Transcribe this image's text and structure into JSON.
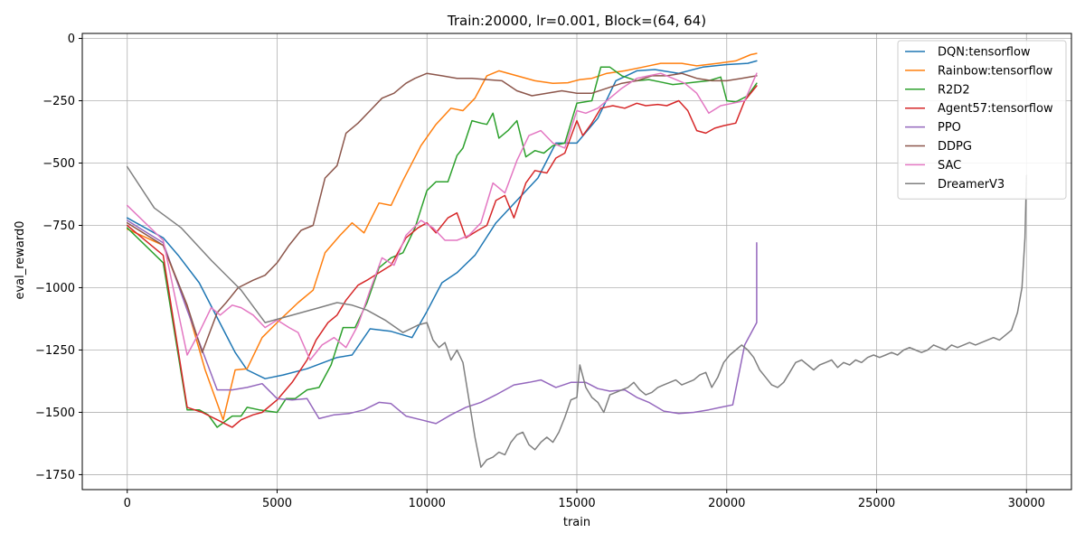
{
  "chart_data": {
    "type": "line",
    "title": "Train:20000, lr=0.001, Block=(64, 64)",
    "xlabel": "train",
    "ylabel": "eval_reward0",
    "xlim": [
      -1500,
      31500
    ],
    "ylim": [
      -1810,
      20
    ],
    "xticks": [
      0,
      5000,
      10000,
      15000,
      20000,
      25000,
      30000
    ],
    "yticks": [
      -1750,
      -1500,
      -1250,
      -1000,
      -750,
      -500,
      -250,
      0
    ],
    "grid": true,
    "legend_position": "top-right",
    "series": [
      {
        "name": "DQN:tensorflow",
        "color": "#1f77b4",
        "x": [
          0,
          1200,
          1700,
          2400,
          3000,
          3600,
          4000,
          4600,
          5200,
          6000,
          7000,
          7500,
          8100,
          8800,
          9500,
          10000,
          10500,
          11000,
          11600,
          12300,
          13000,
          13700,
          14300,
          15000,
          15700,
          16300,
          17000,
          17600,
          18400,
          19200,
          20000,
          20700,
          21000
        ],
        "y": [
          -720,
          -800,
          -870,
          -980,
          -1120,
          -1260,
          -1330,
          -1365,
          -1350,
          -1325,
          -1280,
          -1270,
          -1165,
          -1175,
          -1200,
          -1095,
          -980,
          -940,
          -870,
          -740,
          -650,
          -560,
          -420,
          -420,
          -320,
          -170,
          -130,
          -125,
          -140,
          -115,
          -105,
          -100,
          -90
        ]
      },
      {
        "name": "Rainbow:tensorflow",
        "color": "#ff7f0e",
        "x": [
          0,
          1200,
          2000,
          2600,
          3200,
          3600,
          4000,
          4500,
          5000,
          5700,
          6200,
          6600,
          7100,
          7500,
          7900,
          8400,
          8800,
          9200,
          9800,
          10300,
          10800,
          11200,
          11600,
          12000,
          12400,
          13000,
          13600,
          14200,
          14700,
          15100,
          15500,
          16000,
          16600,
          17200,
          17800,
          18500,
          19000,
          19700,
          20300,
          20800,
          21000
        ],
        "y": [
          -765,
          -830,
          -1080,
          -1330,
          -1530,
          -1330,
          -1325,
          -1200,
          -1140,
          -1060,
          -1010,
          -860,
          -790,
          -740,
          -780,
          -660,
          -670,
          -570,
          -430,
          -345,
          -280,
          -290,
          -240,
          -150,
          -130,
          -150,
          -170,
          -180,
          -178,
          -165,
          -160,
          -140,
          -130,
          -115,
          -100,
          -100,
          -110,
          -100,
          -90,
          -65,
          -60
        ]
      },
      {
        "name": "R2D2",
        "color": "#2ca02c",
        "x": [
          0,
          1200,
          2000,
          2400,
          2700,
          3000,
          3500,
          3800,
          4000,
          4400,
          5000,
          5300,
          5600,
          6000,
          6400,
          6800,
          7200,
          7600,
          8000,
          8400,
          8800,
          9200,
          9600,
          10000,
          10300,
          10700,
          11000,
          11200,
          11500,
          11800,
          12000,
          12200,
          12400,
          12700,
          13000,
          13300,
          13600,
          13900,
          14200,
          14600,
          15000,
          15500,
          15800,
          16100,
          16500,
          17000,
          17400,
          17800,
          18200,
          18600,
          19000,
          19400,
          19800,
          20000,
          20300,
          20700,
          21000
        ],
        "y": [
          -760,
          -900,
          -1490,
          -1490,
          -1510,
          -1560,
          -1515,
          -1515,
          -1480,
          -1490,
          -1500,
          -1445,
          -1445,
          -1410,
          -1400,
          -1310,
          -1160,
          -1160,
          -1060,
          -920,
          -880,
          -860,
          -760,
          -610,
          -575,
          -575,
          -470,
          -440,
          -330,
          -340,
          -345,
          -300,
          -400,
          -370,
          -330,
          -475,
          -450,
          -460,
          -430,
          -420,
          -260,
          -250,
          -115,
          -115,
          -150,
          -170,
          -165,
          -175,
          -185,
          -180,
          -175,
          -170,
          -155,
          -250,
          -255,
          -230,
          -180
        ]
      },
      {
        "name": "Agent57:tensorflow",
        "color": "#d62728",
        "x": [
          0,
          1200,
          2000,
          2500,
          3000,
          3500,
          3800,
          4200,
          4500,
          5000,
          5500,
          6000,
          6300,
          6700,
          7000,
          7300,
          7700,
          8000,
          8400,
          8800,
          9300,
          9700,
          10000,
          10300,
          10700,
          11000,
          11300,
          11700,
          12000,
          12300,
          12600,
          12900,
          13300,
          13600,
          14000,
          14300,
          14600,
          15000,
          15200,
          15500,
          15800,
          16200,
          16600,
          17000,
          17300,
          17700,
          18000,
          18400,
          18700,
          19000,
          19300,
          19600,
          19900,
          20300,
          20600,
          21000
        ],
        "y": [
          -750,
          -870,
          -1480,
          -1500,
          -1530,
          -1560,
          -1530,
          -1510,
          -1500,
          -1450,
          -1380,
          -1290,
          -1210,
          -1140,
          -1110,
          -1050,
          -990,
          -970,
          -940,
          -910,
          -800,
          -760,
          -740,
          -780,
          -720,
          -700,
          -800,
          -770,
          -750,
          -650,
          -630,
          -720,
          -580,
          -530,
          -540,
          -480,
          -460,
          -330,
          -390,
          -340,
          -280,
          -270,
          -280,
          -260,
          -270,
          -265,
          -270,
          -250,
          -290,
          -370,
          -380,
          -360,
          -350,
          -340,
          -250,
          -190
        ]
      },
      {
        "name": "PPO",
        "color": "#9467bd",
        "x": [
          0,
          1200,
          2000,
          2500,
          3000,
          3500,
          4000,
          4500,
          5000,
          5500,
          6000,
          6400,
          6900,
          7400,
          7900,
          8400,
          8800,
          9300,
          9800,
          10300,
          10800,
          11300,
          11800,
          12300,
          12900,
          13400,
          13800,
          14300,
          14800,
          15300,
          15700,
          16100,
          16600,
          17000,
          17400,
          17900,
          18400,
          18900,
          19400,
          19800,
          20200,
          20600,
          21000,
          21000,
          21000
        ],
        "y": [
          -730,
          -820,
          -1090,
          -1250,
          -1410,
          -1410,
          -1400,
          -1385,
          -1445,
          -1450,
          -1445,
          -1525,
          -1510,
          -1505,
          -1490,
          -1460,
          -1465,
          -1515,
          -1530,
          -1545,
          -1510,
          -1480,
          -1460,
          -1430,
          -1390,
          -1380,
          -1370,
          -1400,
          -1380,
          -1380,
          -1405,
          -1415,
          -1410,
          -1440,
          -1460,
          -1495,
          -1505,
          -1500,
          -1490,
          -1480,
          -1470,
          -1230,
          -1140,
          -1000,
          -820
        ]
      },
      {
        "name": "DDPG",
        "color": "#8c564b",
        "x": [
          0,
          1200,
          2000,
          2500,
          3000,
          3300,
          3700,
          4200,
          4600,
          5000,
          5400,
          5800,
          6200,
          6600,
          7000,
          7300,
          7700,
          8100,
          8500,
          8900,
          9300,
          9600,
          10000,
          10500,
          11000,
          11500,
          12000,
          12500,
          13000,
          13500,
          14000,
          14500,
          15000,
          15500,
          16000,
          16500,
          17000,
          17500,
          18000,
          18500,
          19000,
          19500,
          20000,
          20500,
          21000
        ],
        "y": [
          -740,
          -830,
          -1070,
          -1260,
          -1100,
          -1060,
          -1000,
          -970,
          -950,
          -900,
          -830,
          -770,
          -750,
          -560,
          -510,
          -380,
          -340,
          -290,
          -240,
          -220,
          -180,
          -160,
          -140,
          -150,
          -160,
          -160,
          -165,
          -170,
          -210,
          -230,
          -220,
          -210,
          -220,
          -220,
          -200,
          -180,
          -170,
          -150,
          -150,
          -140,
          -160,
          -170,
          -170,
          -160,
          -150
        ]
      },
      {
        "name": "SAC",
        "color": "#e377c2",
        "x": [
          0,
          1200,
          2000,
          2400,
          2800,
          3100,
          3500,
          3800,
          4200,
          4600,
          5000,
          5400,
          5700,
          6100,
          6500,
          6900,
          7300,
          7700,
          8100,
          8500,
          8900,
          9300,
          9800,
          10200,
          10600,
          11000,
          11400,
          11800,
          12200,
          12600,
          13000,
          13400,
          13800,
          14200,
          14600,
          15000,
          15300,
          15700,
          16100,
          16500,
          17000,
          17400,
          17800,
          18200,
          18600,
          19000,
          19400,
          19800,
          20200,
          20600,
          21000
        ],
        "y": [
          -670,
          -810,
          -1270,
          -1180,
          -1080,
          -1110,
          -1070,
          -1080,
          -1110,
          -1160,
          -1130,
          -1160,
          -1180,
          -1290,
          -1230,
          -1200,
          -1240,
          -1150,
          -1010,
          -880,
          -910,
          -790,
          -730,
          -760,
          -810,
          -810,
          -790,
          -740,
          -580,
          -620,
          -490,
          -390,
          -370,
          -420,
          -440,
          -290,
          -300,
          -280,
          -240,
          -200,
          -160,
          -150,
          -140,
          -160,
          -180,
          -220,
          -300,
          -270,
          -260,
          -250,
          -140
        ]
      },
      {
        "name": "DreamerV3",
        "color": "#7f7f7f",
        "x": [
          0,
          900,
          1800,
          2800,
          3800,
          4600,
          5200,
          5800,
          6400,
          7000,
          7500,
          8000,
          8600,
          9200,
          9700,
          10000,
          10200,
          10400,
          10600,
          10800,
          11000,
          11200,
          11400,
          11600,
          11800,
          12000,
          12200,
          12400,
          12600,
          12800,
          13000,
          13200,
          13400,
          13600,
          13800,
          14000,
          14200,
          14400,
          14600,
          14800,
          15000,
          15100,
          15300,
          15500,
          15700,
          15900,
          16100,
          16300,
          16500,
          16700,
          16900,
          17100,
          17300,
          17500,
          17700,
          17900,
          18100,
          18300,
          18500,
          18700,
          18900,
          19100,
          19300,
          19500,
          19700,
          19900,
          20100,
          20300,
          20500,
          20700,
          20900,
          21100,
          21300,
          21500,
          21700,
          21900,
          22100,
          22300,
          22500,
          22700,
          22900,
          23100,
          23300,
          23500,
          23700,
          23900,
          24100,
          24300,
          24500,
          24700,
          24900,
          25100,
          25300,
          25500,
          25700,
          25900,
          26100,
          26300,
          26500,
          26700,
          26900,
          27100,
          27300,
          27500,
          27700,
          27900,
          28100,
          28300,
          28500,
          28700,
          28900,
          29100,
          29300,
          29500,
          29700,
          29850,
          29950,
          30000
        ],
        "y": [
          -515,
          -680,
          -760,
          -890,
          -1010,
          -1140,
          -1120,
          -1100,
          -1080,
          -1060,
          -1070,
          -1090,
          -1130,
          -1180,
          -1150,
          -1140,
          -1210,
          -1240,
          -1220,
          -1290,
          -1250,
          -1300,
          -1450,
          -1600,
          -1720,
          -1690,
          -1680,
          -1660,
          -1670,
          -1620,
          -1590,
          -1580,
          -1630,
          -1650,
          -1620,
          -1600,
          -1620,
          -1580,
          -1520,
          -1450,
          -1440,
          -1310,
          -1400,
          -1440,
          -1460,
          -1500,
          -1430,
          -1420,
          -1410,
          -1400,
          -1380,
          -1410,
          -1430,
          -1420,
          -1400,
          -1390,
          -1380,
          -1370,
          -1390,
          -1380,
          -1370,
          -1350,
          -1340,
          -1400,
          -1360,
          -1300,
          -1270,
          -1250,
          -1230,
          -1250,
          -1280,
          -1330,
          -1360,
          -1390,
          -1400,
          -1380,
          -1340,
          -1300,
          -1290,
          -1310,
          -1330,
          -1310,
          -1300,
          -1290,
          -1320,
          -1300,
          -1310,
          -1290,
          -1300,
          -1280,
          -1270,
          -1280,
          -1270,
          -1260,
          -1270,
          -1250,
          -1240,
          -1250,
          -1260,
          -1250,
          -1230,
          -1240,
          -1250,
          -1230,
          -1240,
          -1230,
          -1220,
          -1230,
          -1220,
          -1210,
          -1200,
          -1210,
          -1190,
          -1170,
          -1100,
          -1000,
          -800,
          -550
        ]
      }
    ]
  }
}
